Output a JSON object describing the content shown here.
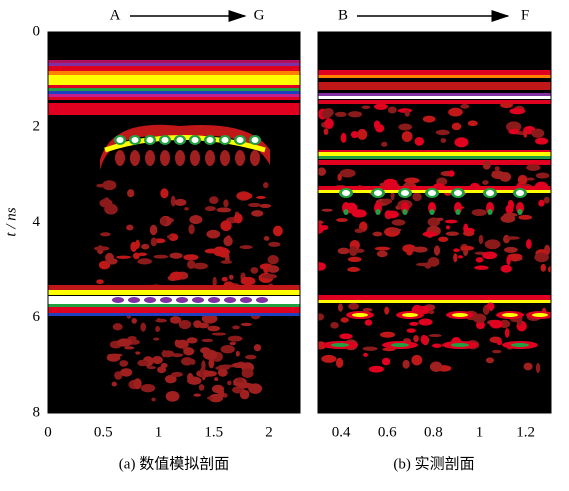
{
  "chart_data": [
    {
      "type": "image",
      "caption": "(a) 数值模拟剖面",
      "start_label": "A",
      "end_label": "G",
      "xlim": [
        0,
        2.28
      ],
      "xticks": [
        0,
        0.5,
        1,
        1.5,
        2
      ],
      "ylim": [
        0,
        8
      ],
      "yticks": [
        0,
        2,
        4,
        6,
        8
      ],
      "ylabel": "t / ns"
    },
    {
      "type": "image",
      "caption": "(b) 实测剖面",
      "start_label": "B",
      "end_label": "F",
      "xlim": [
        0.3,
        1.31
      ],
      "xticks": [
        0.4,
        0.6,
        0.8,
        1,
        1.2
      ]
    }
  ]
}
